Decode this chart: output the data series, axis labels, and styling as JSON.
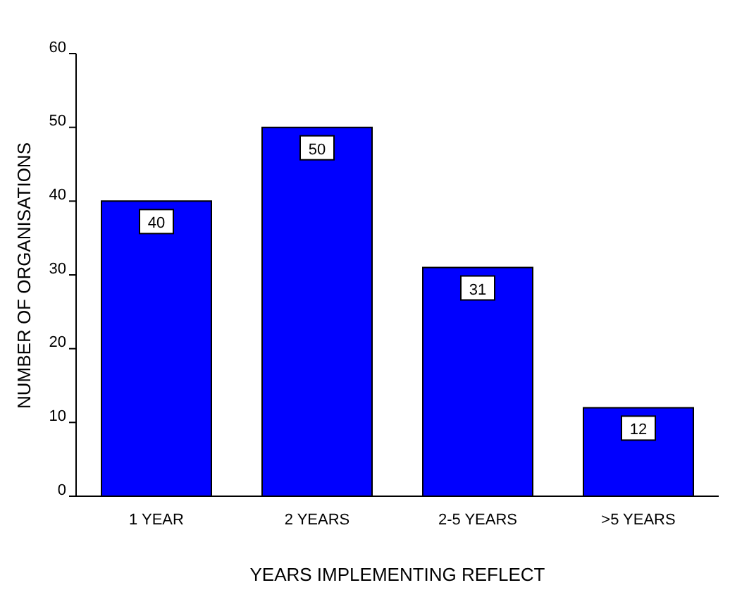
{
  "chart_data": {
    "type": "bar",
    "xlabel": "YEARS IMPLEMENTING REFLECT",
    "ylabel": "NUMBER OF ORGANISATIONS",
    "categories": [
      "1 YEAR",
      "2 YEARS",
      "2-5 YEARS",
      ">5 YEARS"
    ],
    "values": [
      40,
      50,
      31,
      12
    ],
    "color": "#0000ff",
    "ylim": [
      0,
      60
    ],
    "yticks": [
      0,
      10,
      20,
      30,
      40,
      50,
      60
    ],
    "grid": false,
    "data_labels": true
  }
}
